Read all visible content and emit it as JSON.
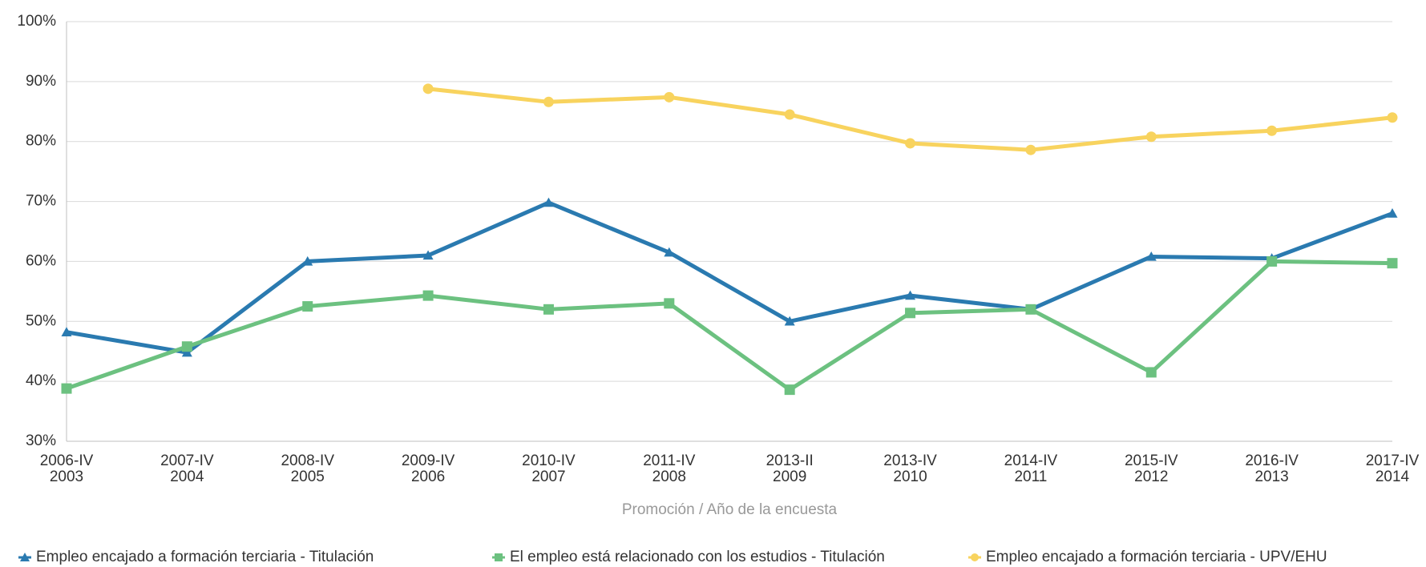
{
  "chart_data": {
    "type": "line",
    "categories": [
      [
        "2006-IV",
        "2003"
      ],
      [
        "2007-IV",
        "2004"
      ],
      [
        "2008-IV",
        "2005"
      ],
      [
        "2009-IV",
        "2006"
      ],
      [
        "2010-IV",
        "2007"
      ],
      [
        "2011-IV",
        "2008"
      ],
      [
        "2013-II",
        "2009"
      ],
      [
        "2013-IV",
        "2010"
      ],
      [
        "2014-IV",
        "2011"
      ],
      [
        "2015-IV",
        "2012"
      ],
      [
        "2016-IV",
        "2013"
      ],
      [
        "2017-IV",
        "2014"
      ]
    ],
    "x_label": "Promoción / Año de la encuesta",
    "series": [
      {
        "name": "Empleo encajado a formación terciaria - Titulación",
        "color": "#2a7ab0",
        "marker": "triangle",
        "values": [
          48.2,
          44.8,
          60,
          61,
          69.8,
          61.5,
          50,
          54.3,
          52,
          60.8,
          60.5,
          68
        ]
      },
      {
        "name": "El empleo está relacionado con los estudios - Titulación",
        "color": "#6cc180",
        "marker": "square",
        "values": [
          38.8,
          45.8,
          52.5,
          54.3,
          52,
          53,
          38.6,
          51.4,
          52,
          41.5,
          60,
          59.7
        ]
      },
      {
        "name": "Empleo encajado a formación terciaria - UPV/EHU",
        "color": "#f8d35e",
        "marker": "circle",
        "values": [
          null,
          null,
          null,
          88.8,
          86.6,
          87.4,
          84.5,
          79.7,
          78.6,
          80.8,
          81.8,
          84
        ]
      }
    ],
    "ylim": [
      30,
      100
    ],
    "yticks": [
      {
        "value": 30,
        "label": "30%"
      },
      {
        "value": 40,
        "label": "40%"
      },
      {
        "value": 50,
        "label": "50%"
      },
      {
        "value": 60,
        "label": "60%"
      },
      {
        "value": 70,
        "label": "70%"
      },
      {
        "value": 80,
        "label": "80%"
      },
      {
        "value": 90,
        "label": "90%"
      },
      {
        "value": 100,
        "label": "100%"
      }
    ],
    "grid": true
  }
}
